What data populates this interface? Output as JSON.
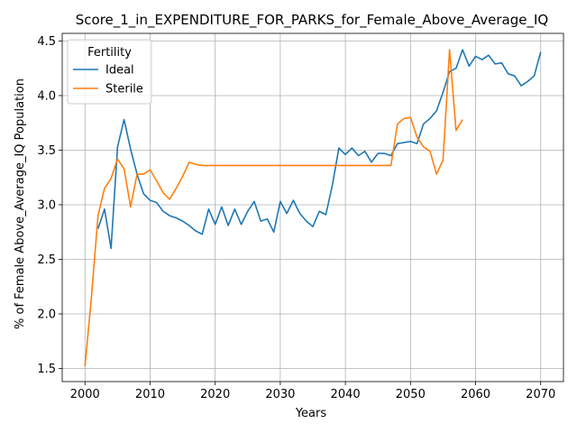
{
  "chart_data": {
    "type": "line",
    "title": "Score_1_in_EXPENDITURE_FOR_PARKS_for_Female_Above_Average_IQ",
    "xlabel": "Years",
    "ylabel": "% of Female Above_Average_IQ Population",
    "xlim": [
      1996.5,
      2073.5
    ],
    "ylim": [
      1.38,
      4.57
    ],
    "xticks": [
      2000,
      2010,
      2020,
      2030,
      2040,
      2050,
      2060,
      2070
    ],
    "yticks": [
      1.5,
      2.0,
      2.5,
      3.0,
      3.5,
      4.0,
      4.5
    ],
    "grid": true,
    "legend": {
      "title": "Fertility",
      "position": "upper-left"
    },
    "series": [
      {
        "name": "Ideal",
        "color": "#1f77b4",
        "x": [
          2002,
          2003,
          2004,
          2005,
          2006,
          2007,
          2008,
          2009,
          2010,
          2011,
          2012,
          2013,
          2014,
          2015,
          2016,
          2017,
          2018,
          2019,
          2020,
          2021,
          2022,
          2023,
          2024,
          2025,
          2026,
          2027,
          2028,
          2029,
          2030,
          2031,
          2032,
          2033,
          2034,
          2035,
          2036,
          2037,
          2038,
          2039,
          2040,
          2041,
          2042,
          2043,
          2044,
          2045,
          2046,
          2047,
          2048,
          2049,
          2050,
          2051,
          2052,
          2053,
          2054,
          2055,
          2056,
          2057,
          2058,
          2059,
          2060,
          2061,
          2062,
          2063,
          2064,
          2065,
          2066,
          2067,
          2068,
          2069,
          2070
        ],
        "y": [
          2.78,
          2.96,
          2.6,
          3.53,
          3.78,
          3.51,
          3.28,
          3.1,
          3.04,
          3.02,
          2.94,
          2.9,
          2.88,
          2.85,
          2.81,
          2.76,
          2.73,
          2.96,
          2.82,
          2.98,
          2.81,
          2.96,
          2.82,
          2.94,
          3.03,
          2.85,
          2.87,
          2.75,
          3.03,
          2.92,
          3.04,
          2.92,
          2.85,
          2.8,
          2.94,
          2.91,
          3.18,
          3.52,
          3.46,
          3.52,
          3.45,
          3.49,
          3.39,
          3.47,
          3.47,
          3.45,
          3.56,
          3.57,
          3.58,
          3.56,
          3.74,
          3.79,
          3.86,
          4.03,
          4.22,
          4.25,
          4.42,
          4.27,
          4.36,
          4.33,
          4.37,
          4.29,
          4.3,
          4.2,
          4.18,
          4.09,
          4.13,
          4.18,
          4.4
        ]
      },
      {
        "name": "Sterile",
        "color": "#ff7f0e",
        "x": [
          2000,
          2001,
          2002,
          2003,
          2004,
          2005,
          2006,
          2007,
          2008,
          2009,
          2010,
          2011,
          2012,
          2013,
          2014,
          2015,
          2016,
          2017,
          2018,
          2019,
          2020,
          2021,
          2022,
          2023,
          2024,
          2025,
          2026,
          2027,
          2028,
          2029,
          2030,
          2031,
          2032,
          2033,
          2034,
          2035,
          2036,
          2037,
          2038,
          2039,
          2040,
          2041,
          2042,
          2043,
          2044,
          2045,
          2046,
          2047,
          2048,
          2049,
          2050,
          2051,
          2052,
          2053,
          2054,
          2055,
          2056,
          2057,
          2058
        ],
        "y": [
          1.52,
          2.16,
          2.9,
          3.15,
          3.24,
          3.42,
          3.33,
          2.98,
          3.28,
          3.28,
          3.32,
          3.22,
          3.11,
          3.05,
          3.15,
          3.26,
          3.39,
          3.37,
          3.36,
          3.36,
          3.36,
          3.36,
          3.36,
          3.36,
          3.36,
          3.36,
          3.36,
          3.36,
          3.36,
          3.36,
          3.36,
          3.36,
          3.36,
          3.36,
          3.36,
          3.36,
          3.36,
          3.36,
          3.36,
          3.36,
          3.36,
          3.36,
          3.36,
          3.36,
          3.36,
          3.36,
          3.36,
          3.36,
          3.74,
          3.79,
          3.8,
          3.62,
          3.53,
          3.49,
          3.28,
          3.41,
          4.42,
          3.68,
          3.78
        ]
      }
    ]
  }
}
